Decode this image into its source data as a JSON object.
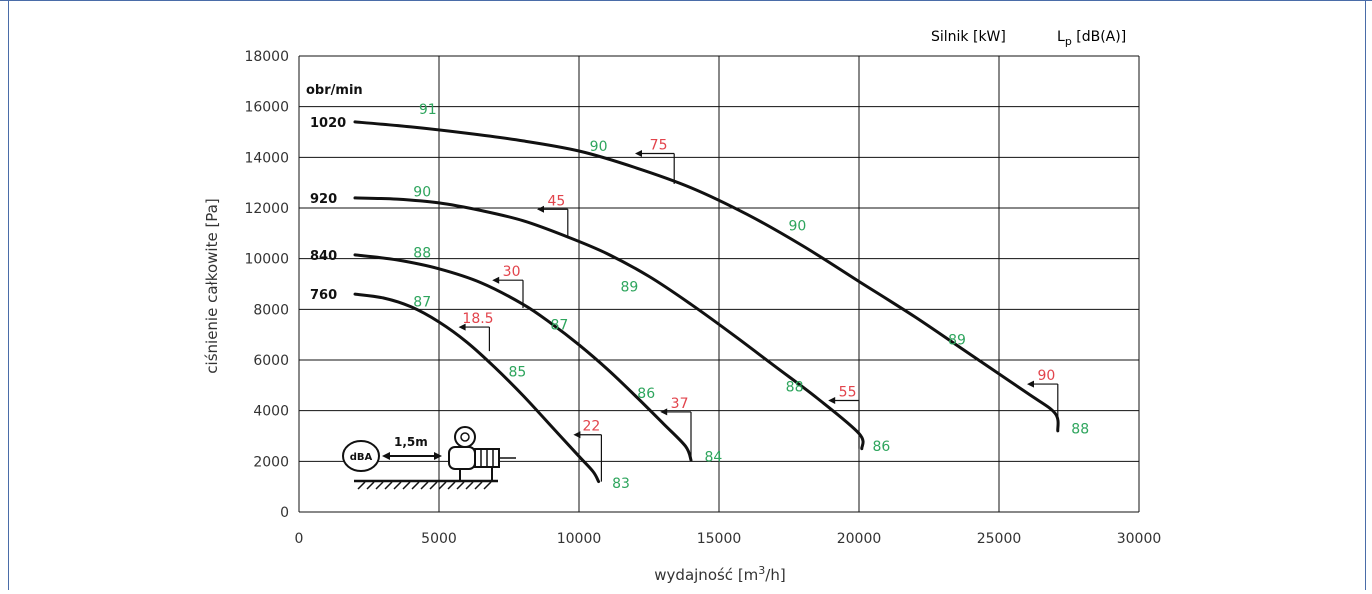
{
  "colors": {
    "lp_green": "#2ea55d",
    "kw_red": "#e2444c",
    "curve": "#111111",
    "grid": "#111111",
    "frame_border": "#4a6ca8"
  },
  "legend": {
    "motor_label": "Silnik [kW]",
    "lp_label_prefix": "L",
    "lp_label_sub": "p",
    "lp_label_suffix": " [dB(A)]"
  },
  "diagram": {
    "dba_label": "dBA",
    "distance_label": "1,5m"
  },
  "chart_data": {
    "type": "line",
    "xlabel_prefix": "wydajność [m",
    "xlabel_sup": "3",
    "xlabel_suffix": "/h]",
    "ylabel": "ciśnienie całkowite [Pa]",
    "xlim": [
      0,
      30000
    ],
    "ylim": [
      0,
      18000
    ],
    "x_ticks": [
      0,
      5000,
      10000,
      15000,
      20000,
      25000,
      30000
    ],
    "y_ticks": [
      0,
      2000,
      4000,
      6000,
      8000,
      10000,
      12000,
      14000,
      16000,
      18000
    ],
    "grid": true,
    "speed_header": "obr/min",
    "series": [
      {
        "name": "1020",
        "points": [
          [
            2000,
            15400
          ],
          [
            4000,
            15200
          ],
          [
            6000,
            14950
          ],
          [
            8000,
            14650
          ],
          [
            10000,
            14250
          ],
          [
            12000,
            13600
          ],
          [
            14000,
            12800
          ],
          [
            16000,
            11750
          ],
          [
            18000,
            10500
          ],
          [
            20000,
            9100
          ],
          [
            22000,
            7700
          ],
          [
            24000,
            6200
          ],
          [
            26000,
            4700
          ],
          [
            27000,
            3900
          ],
          [
            27100,
            3200
          ]
        ],
        "lp_labels": [
          {
            "x": 4600,
            "y": 15900,
            "t": "91"
          },
          {
            "x": 10700,
            "y": 14450,
            "t": "90"
          },
          {
            "x": 17800,
            "y": 11300,
            "t": "90"
          },
          {
            "x": 23500,
            "y": 6800,
            "t": "89"
          },
          {
            "x": 27900,
            "y": 3300,
            "t": "88"
          }
        ],
        "kw_label": {
          "t": "75",
          "corner_x": 13400,
          "corner_y": 14150,
          "bottom_y": 12950,
          "tip_x": 12000
        }
      },
      {
        "name": "920",
        "points": [
          [
            2000,
            12400
          ],
          [
            3500,
            12350
          ],
          [
            5000,
            12200
          ],
          [
            6500,
            11900
          ],
          [
            8000,
            11500
          ],
          [
            9500,
            10900
          ],
          [
            11000,
            10200
          ],
          [
            12500,
            9300
          ],
          [
            14000,
            8200
          ],
          [
            15500,
            7000
          ],
          [
            17000,
            5750
          ],
          [
            18500,
            4500
          ],
          [
            20000,
            3100
          ],
          [
            20100,
            2500
          ]
        ],
        "lp_labels": [
          {
            "x": 4400,
            "y": 12650,
            "t": "90"
          },
          {
            "x": 11800,
            "y": 8900,
            "t": "89"
          },
          {
            "x": 17700,
            "y": 4950,
            "t": "88"
          },
          {
            "x": 20800,
            "y": 2600,
            "t": "86"
          }
        ],
        "kw_label": {
          "t": "45",
          "corner_x": 9600,
          "corner_y": 11950,
          "bottom_y": 10800,
          "tip_x": 8500
        }
      },
      {
        "name": "840",
        "points": [
          [
            2000,
            10150
          ],
          [
            3500,
            9950
          ],
          [
            5000,
            9600
          ],
          [
            6500,
            9050
          ],
          [
            8000,
            8200
          ],
          [
            9000,
            7450
          ],
          [
            10000,
            6600
          ],
          [
            11000,
            5650
          ],
          [
            12000,
            4600
          ],
          [
            13000,
            3500
          ],
          [
            13800,
            2600
          ],
          [
            14000,
            2050
          ]
        ],
        "lp_labels": [
          {
            "x": 4400,
            "y": 10250,
            "t": "88"
          },
          {
            "x": 9300,
            "y": 7400,
            "t": "87"
          },
          {
            "x": 12400,
            "y": 4700,
            "t": "86"
          },
          {
            "x": 14800,
            "y": 2200,
            "t": "84"
          }
        ],
        "kw_label": {
          "t": "30",
          "corner_x": 8000,
          "corner_y": 9150,
          "bottom_y": 8050,
          "tip_x": 6900
        }
      },
      {
        "name": "760",
        "points": [
          [
            2000,
            8600
          ],
          [
            3000,
            8450
          ],
          [
            4000,
            8100
          ],
          [
            5000,
            7500
          ],
          [
            6000,
            6700
          ],
          [
            7000,
            5700
          ],
          [
            8000,
            4600
          ],
          [
            9000,
            3400
          ],
          [
            10000,
            2200
          ],
          [
            10500,
            1600
          ],
          [
            10700,
            1200
          ]
        ],
        "lp_labels": [
          {
            "x": 4400,
            "y": 8300,
            "t": "87"
          },
          {
            "x": 7800,
            "y": 5550,
            "t": "85"
          },
          {
            "x": 11500,
            "y": 1150,
            "t": "83"
          }
        ],
        "kw_label": {
          "t": "18.5",
          "corner_x": 6800,
          "corner_y": 7300,
          "bottom_y": 6350,
          "tip_x": 5700
        }
      }
    ],
    "extra_kw_labels": [
      {
        "t": "22",
        "corner_x": 10800,
        "corner_y": 3050,
        "bottom_y": 1200,
        "tip_x": 9800
      },
      {
        "t": "37",
        "corner_x": 14000,
        "corner_y": 3950,
        "bottom_y": 2050,
        "tip_x": 12900
      },
      {
        "t": "55",
        "corner_x": 20000,
        "corner_y": 4400,
        "bottom_y": 2500,
        "tip_x": 18900
      },
      {
        "t": "90",
        "corner_x": 27100,
        "corner_y": 5050,
        "bottom_y": 3200,
        "tip_x": 26000
      }
    ]
  }
}
